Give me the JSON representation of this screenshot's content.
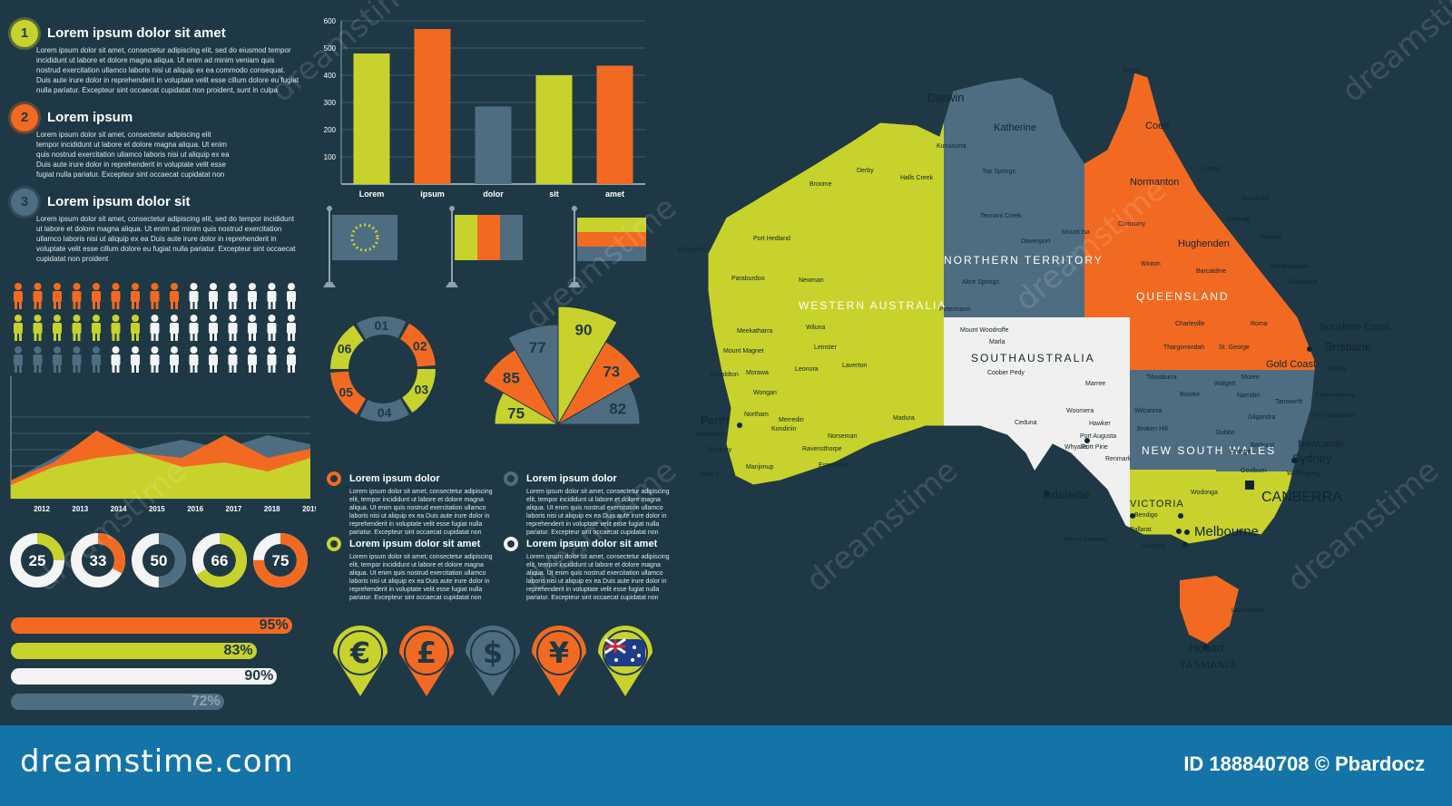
{
  "colors": {
    "bg": "#1e3945",
    "lime": "#c8d22c",
    "orange": "#f26a22",
    "slate": "#4f6d80",
    "white": "#f4f4f4",
    "footer": "#1474a8"
  },
  "steps": [
    {
      "num": "1",
      "title": "Lorem ipsum dolor sit amet",
      "text": "Lorem ipsum dolor sit amet, consectetur adipiscing elit, sed do eiusmod tempor incididunt ut labore et dolore magna aliqua. Ut enim ad minim veniam quis nostrud exercitation ullamco laboris nisi ut aliquip ex ea commodo consequat. Duis aute irure dolor in reprehenderit in voluptate velit esse cillum dolore eu fugiat nulla pariatur. Excepteur sint occaecat cupidatat non proident, sunt in culpa"
    },
    {
      "num": "2",
      "title": "Lorem ipsum",
      "text": "Lorem ipsum dolor sit amet, consectetur adipiscing elit tempor incididunt ut labore et dolore magna aliqua. Ut enim quis nostrud exercitation ullamco laboris nisi ut aliquip ex ea Duis aute irure dolor in reprehenderit in voluptate velit esse fugiat nulla pariatur. Excepteur sint occaecat cupidatat non"
    },
    {
      "num": "3",
      "title": "Lorem ipsum dolor sit",
      "text": "Lorem ipsum dolor sit amet, consectetur adipiscing elit, sed do tempor incididunt ut labore et dolore magna aliqua. Ut enim ad minim quis nostrud exercitation ullamco laboris nisi ut aliquip ex ea Duis aute irure dolor in reprehenderit in voluptate velit esse cillum dolore eu fugiat nulla pariatur. Excepteur sint occaecat cupidatat non proident"
    }
  ],
  "chart_data": [
    {
      "type": "bar",
      "categories": [
        "Lorem",
        "ipsum",
        "dolor",
        "sit",
        "amet"
      ],
      "values": [
        480,
        570,
        285,
        400,
        435
      ],
      "ylim": [
        0,
        600
      ],
      "yticks": [
        "600",
        "500",
        "400",
        "300",
        "200",
        "100"
      ],
      "colors": [
        "#c8d22c",
        "#f26a22",
        "#4f6d80",
        "#c8d22c",
        "#f26a22"
      ]
    },
    {
      "type": "area",
      "x": [
        "2012",
        "2013",
        "2014",
        "2015",
        "2016",
        "2017",
        "2018",
        "2019"
      ],
      "series": [
        {
          "values": [
            0.2,
            0.45,
            0.7,
            0.55,
            0.65,
            0.55,
            0.7,
            0.6
          ],
          "color": "#4f6d80"
        },
        {
          "values": [
            0.2,
            0.4,
            0.75,
            0.5,
            0.45,
            0.7,
            0.45,
            0.55
          ],
          "color": "#f26a22"
        },
        {
          "values": [
            0.15,
            0.35,
            0.45,
            0.5,
            0.35,
            0.4,
            0.3,
            0.45
          ],
          "color": "#c8d22c"
        }
      ]
    }
  ],
  "donuts": [
    {
      "label": "25",
      "value": 25,
      "color": "#c8d22c"
    },
    {
      "label": "33",
      "value": 33,
      "color": "#f26a22"
    },
    {
      "label": "50",
      "value": 50,
      "color": "#4f6d80"
    },
    {
      "label": "66",
      "value": 66,
      "color": "#c8d22c"
    },
    {
      "label": "75",
      "value": 75,
      "color": "#f26a22"
    }
  ],
  "progress": [
    {
      "label": "95%",
      "value": 95,
      "color": "#f26a22"
    },
    {
      "label": "83%",
      "value": 83,
      "color": "#c8d22c"
    },
    {
      "label": "90%",
      "value": 90,
      "color": "#f4f4f4"
    },
    {
      "label": "72%",
      "value": 72,
      "color": "#4f6d80"
    }
  ],
  "ring": {
    "labels": [
      "01",
      "02",
      "03",
      "04",
      "05",
      "06"
    ]
  },
  "radial": {
    "labels": [
      "75",
      "85",
      "77",
      "90",
      "73",
      "82"
    ]
  },
  "info_blocks": [
    {
      "title": "Lorem ipsum dolor",
      "text": "Lorem ipsum dolor sit amet, consectetur adipiscing elit, tempor incididunt ut labore et dolore magna aliqua. Ut enim quis nostrud exercitation ullamco laboris nisi ut aliquip ex ea Duis aute irure dolor in reprehenderit in voluptate velit esse fugiat nulla pariatur. Excepteur sint occaecat cupidatat non"
    },
    {
      "title": "Lorem ipsum dolor",
      "text": "Lorem ipsum dolor sit amet, consectetur adipiscing elit, tempor incididunt ut labore et dolore magna aliqua. Ut enim quis nostrud exercitation ullamco laboris nisi ut aliquip ex ea Duis aute irure dolor in reprehenderit in voluptate velit esse fugiat nulla pariatur. Excepteur sint occaecat cupidatat non"
    },
    {
      "title": "Lorem ipsum dolor sit amet",
      "text": "Lorem ipsum dolor sit amet, consectetur adipiscing elit, tempor incididunt ut labore et dolore magna aliqua. Ut enim quis nostrud exercitation ullamco laboris nisi ut aliquip ex ea Duis aute irure dolor in reprehenderit in voluptate velit esse fugiat nulla pariatur. Excepteur sint occaecat cupidatat non"
    },
    {
      "title": "Lorem ipsum dolor sit amet",
      "text": "Lorem ipsum dolor sit amet, consectetur adipiscing elit, tempor incididunt ut labore et dolore magna aliqua. Ut enim quis nostrud exercitation ullamco laboris nisi ut aliquip ex ea Duis aute irure dolor in reprehenderit in voluptate velit esse fugiat nulla pariatur. Excepteur sint occaecat cupidatat non"
    }
  ],
  "currency_pins": [
    {
      "symbol": "€",
      "icon": "euro-icon",
      "color": "#c8d22c"
    },
    {
      "symbol": "£",
      "icon": "pound-icon",
      "color": "#f26a22"
    },
    {
      "symbol": "$",
      "icon": "dollar-icon",
      "color": "#4f6d80"
    },
    {
      "symbol": "¥",
      "icon": "yen-icon",
      "color": "#f26a22"
    },
    {
      "symbol": "",
      "icon": "australia-flag-icon",
      "color": "#c8d22c"
    }
  ],
  "map": {
    "states": [
      "WESTERN AUSTRALIA",
      "NORTHERN TERRITORY",
      "QUEENSLAND",
      "SOUTHAUSTRALIA",
      "NEW SOUTH WALES",
      "VICTORIA",
      "TASMANIA"
    ],
    "capitals": [
      "Darwin",
      "Perth",
      "Adelaide",
      "Melbourne",
      "CANBERRA",
      "Sydney",
      "Brisbane",
      "Hobart"
    ],
    "cities": [
      "Katherine",
      "Kununurra",
      "Halls Creek",
      "Derby",
      "Broome",
      "Port Hedland",
      "Newman",
      "Paraburdoo",
      "Meekatharra",
      "Wiluna",
      "Mount Magnet",
      "Leinster",
      "Leonora",
      "Laverton",
      "Morawa",
      "Wongan",
      "Geraldton",
      "Northam",
      "Merredin",
      "Kondinin",
      "Norseman",
      "Ravensthorpe",
      "Manjimup",
      "Bunbury",
      "Mandurah",
      "Albany",
      "Esperance",
      "Madura",
      "Tennant Creek",
      "Top Springs",
      "Davenport",
      "Alice Springs",
      "Petermann",
      "Mount Woodroffe",
      "Marla",
      "Coober Pedy",
      "Marree",
      "Woomera",
      "Ceduna",
      "Hawker",
      "Port Augusta",
      "Whyalla",
      "Port Pirie",
      "Renmark",
      "Mount Isa",
      "Cloncurry",
      "Winton",
      "Hughenden",
      "Normanton",
      "Coen",
      "Cairns",
      "Townsville",
      "Emerald",
      "Mackay",
      "Rockhampton",
      "Gladstone",
      "Barcaldine",
      "Charleville",
      "Roma",
      "Thargomindah",
      "St. George",
      "Gold Coast",
      "Sunshine Coast",
      "Ballina",
      "Tibooburra",
      "Bourke",
      "Walgett",
      "Moree",
      "Narrabri",
      "Tamworth",
      "Coffs Harbour",
      "Port Macquarie",
      "Gilgandra",
      "Dubbo",
      "Bathurst",
      "Orange",
      "Newcastle",
      "Wollongong",
      "Goulburn",
      "Broken Hill",
      "Wilcannia",
      "Wodonga",
      "Bendigo",
      "Ballarat",
      "Geelong",
      "Mount Gambier",
      "Launceston",
      "Weipa",
      "Kalgoorlie"
    ]
  },
  "footer": {
    "logo": "dreamstime.com",
    "credit": "ID 188840708 © Pbardocz"
  },
  "watermark_text": "dreamstime"
}
